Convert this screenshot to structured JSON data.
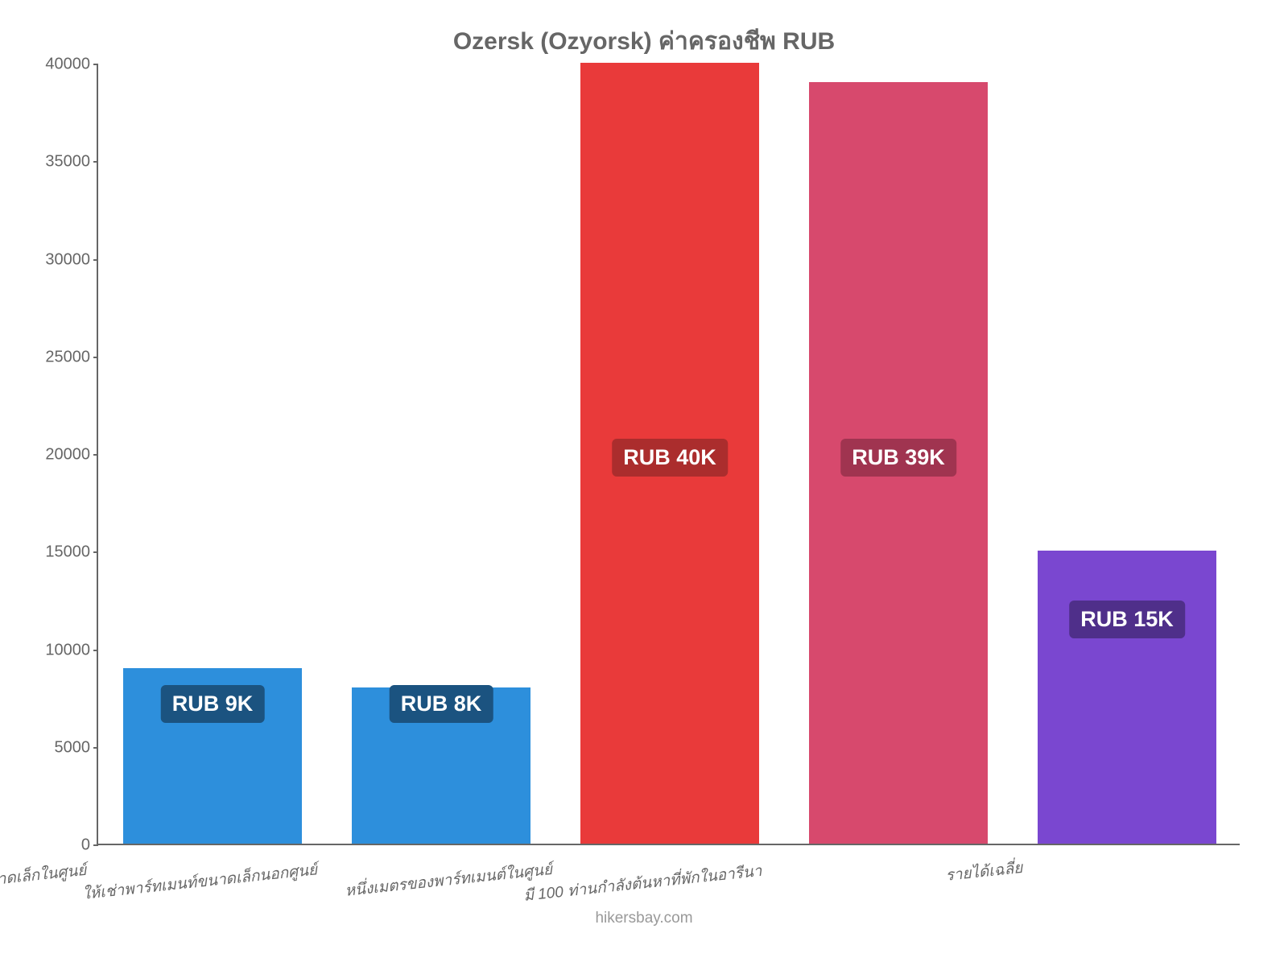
{
  "chart": {
    "type": "bar",
    "title": "Ozersk (Ozyorsk) ค่าครองชีพ RUB",
    "title_fontsize": 30,
    "title_color": "#666666",
    "background_color": "#ffffff",
    "axis_color": "#666666",
    "tick_label_color": "#666666",
    "tick_fontsize": 20,
    "ylim": [
      0,
      40000
    ],
    "ytick_step": 5000,
    "yticks": [
      0,
      5000,
      10000,
      15000,
      20000,
      25000,
      30000,
      35000,
      40000
    ],
    "categories": [
      "ให้เช่าพาร์ทเมนต์ขนาดเล็กในศูนย์",
      "ให้เช่าพาร์ทเมนท์ขนาดเล็กนอกศูนย์",
      "หนึ่งเมตรของพาร์ทเมนต์ในศูนย์",
      "มี 100 ท่านกำลังต้นหาที่พักในอารีนา",
      "รายได้เฉลี่ย"
    ],
    "values": [
      9000,
      8000,
      40000,
      39000,
      15000
    ],
    "bar_colors": [
      "#2d8fdc",
      "#2d8fdc",
      "#e93a3a",
      "#d7496d",
      "#7a47d0"
    ],
    "bar_labels": [
      "RUB 9K",
      "RUB 8K",
      "RUB 40K",
      "RUB 39K",
      "RUB 15K"
    ],
    "badge_colors": [
      "#1b5380",
      "#1b5380",
      "#ab2d2d",
      "#a03450",
      "#4f2f8a"
    ],
    "badge_fontsize": 27,
    "x_label_fontsize": 19,
    "x_label_color": "#666666",
    "bar_width_ratio": 0.78
  },
  "footer": {
    "text": "hikersbay.com",
    "color": "#999999",
    "fontsize": 19
  }
}
